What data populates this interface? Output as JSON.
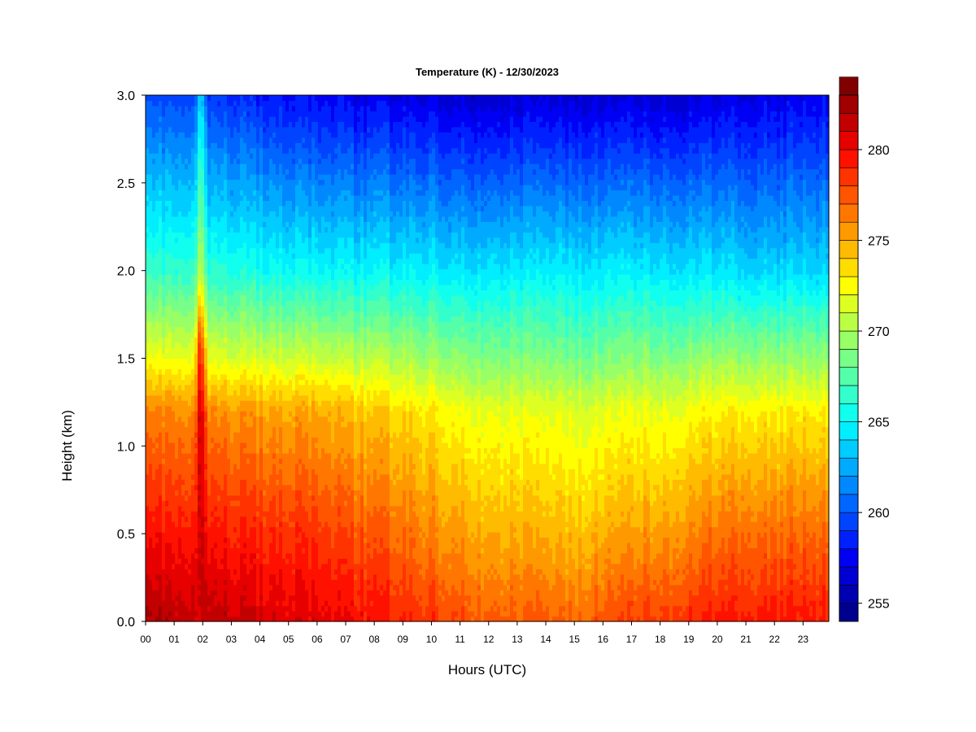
{
  "chart_data": {
    "type": "heatmap",
    "title": "Temperature (K) - 12/30/2023",
    "xlabel": "Hours (UTC)",
    "ylabel": "Height (km)",
    "xlim": [
      0,
      23.9
    ],
    "ylim": [
      0,
      3.0
    ],
    "x_ticks": [
      "00",
      "01",
      "02",
      "03",
      "04",
      "05",
      "06",
      "07",
      "08",
      "09",
      "10",
      "11",
      "12",
      "13",
      "14",
      "15",
      "16",
      "17",
      "18",
      "19",
      "20",
      "21",
      "22",
      "23"
    ],
    "y_ticks": [
      "0.0",
      "0.5",
      "1.0",
      "1.5",
      "2.0",
      "2.5",
      "3.0"
    ],
    "colorbar": {
      "min": 254,
      "max": 283,
      "step": 1,
      "ticks": [
        "255",
        "260",
        "265",
        "270",
        "275",
        "280"
      ],
      "colors": [
        "#00008f",
        "#0000b0",
        "#0000d2",
        "#0000f4",
        "#0021ff",
        "#0044ff",
        "#0066ff",
        "#0088ff",
        "#00aaff",
        "#00ccff",
        "#00eeff",
        "#11ffee",
        "#33ffcc",
        "#55ffaa",
        "#77ff88",
        "#99ff66",
        "#bbff44",
        "#ddff22",
        "#ffff00",
        "#ffdd00",
        "#ffbb00",
        "#ff9900",
        "#ff7700",
        "#ff5500",
        "#ff3300",
        "#ff1100",
        "#e60000",
        "#c30000",
        "#a00000",
        "#800000"
      ]
    },
    "series_description_hours": [
      0,
      1.8,
      2.0,
      6,
      12,
      15,
      18,
      21,
      23.9
    ],
    "profiles": [
      {
        "hour": 0.0,
        "surface_K": 282.0,
        "k1_km": 0.5,
        "t1_K": 279.5,
        "k2_km": 1.2,
        "t2_K": 276.0,
        "k3_km": 1.5,
        "t3_K": 272.0,
        "k4_km": 2.0,
        "t4_K": 266.5,
        "top_K": 259.5
      },
      {
        "hour": 1.7,
        "surface_K": 281.5,
        "k1_km": 0.5,
        "t1_K": 279.5,
        "k2_km": 1.2,
        "t2_K": 276.0,
        "k3_km": 1.5,
        "t3_K": 272.0,
        "k4_km": 2.0,
        "t4_K": 266.5,
        "top_K": 259.5
      },
      {
        "hour": 1.9,
        "surface_K": 281.0,
        "k1_km": 0.5,
        "t1_K": 281.5,
        "k2_km": 1.2,
        "t2_K": 281.5,
        "k3_km": 1.6,
        "t3_K": 279.0,
        "k4_km": 2.0,
        "t4_K": 271.0,
        "top_K": 264.0
      },
      {
        "hour": 2.2,
        "surface_K": 281.5,
        "k1_km": 0.5,
        "t1_K": 279.3,
        "k2_km": 1.2,
        "t2_K": 275.8,
        "k3_km": 1.5,
        "t3_K": 271.5,
        "k4_km": 2.0,
        "t4_K": 266.0,
        "top_K": 259.0
      },
      {
        "hour": 6.0,
        "surface_K": 280.5,
        "k1_km": 0.5,
        "t1_K": 278.5,
        "k2_km": 1.2,
        "t2_K": 275.0,
        "k3_km": 1.5,
        "t3_K": 271.0,
        "k4_km": 2.0,
        "t4_K": 265.0,
        "top_K": 257.5
      },
      {
        "hour": 12.0,
        "surface_K": 277.5,
        "k1_km": 0.5,
        "t1_K": 275.0,
        "k2_km": 1.2,
        "t2_K": 272.0,
        "k3_km": 1.5,
        "t3_K": 269.0,
        "k4_km": 2.0,
        "t4_K": 264.5,
        "top_K": 256.5
      },
      {
        "hour": 15.0,
        "surface_K": 277.0,
        "k1_km": 0.5,
        "t1_K": 274.5,
        "k2_km": 1.2,
        "t2_K": 271.5,
        "k3_km": 1.5,
        "t3_K": 268.5,
        "k4_km": 2.0,
        "t4_K": 264.5,
        "top_K": 256.5
      },
      {
        "hour": 18.0,
        "surface_K": 278.5,
        "k1_km": 0.5,
        "t1_K": 275.5,
        "k2_km": 1.2,
        "t2_K": 272.0,
        "k3_km": 1.5,
        "t3_K": 269.0,
        "k4_km": 2.0,
        "t4_K": 264.5,
        "top_K": 256.5
      },
      {
        "hour": 21.0,
        "surface_K": 279.5,
        "k1_km": 0.5,
        "t1_K": 277.0,
        "k2_km": 1.2,
        "t2_K": 273.0,
        "k3_km": 1.5,
        "t3_K": 269.5,
        "k4_km": 2.0,
        "t4_K": 264.0,
        "top_K": 257.0
      },
      {
        "hour": 23.9,
        "surface_K": 279.5,
        "k1_km": 0.5,
        "t1_K": 277.0,
        "k2_km": 1.2,
        "t2_K": 273.0,
        "k3_km": 1.5,
        "t3_K": 269.5,
        "k4_km": 2.0,
        "t4_K": 264.0,
        "top_K": 257.5
      }
    ]
  }
}
